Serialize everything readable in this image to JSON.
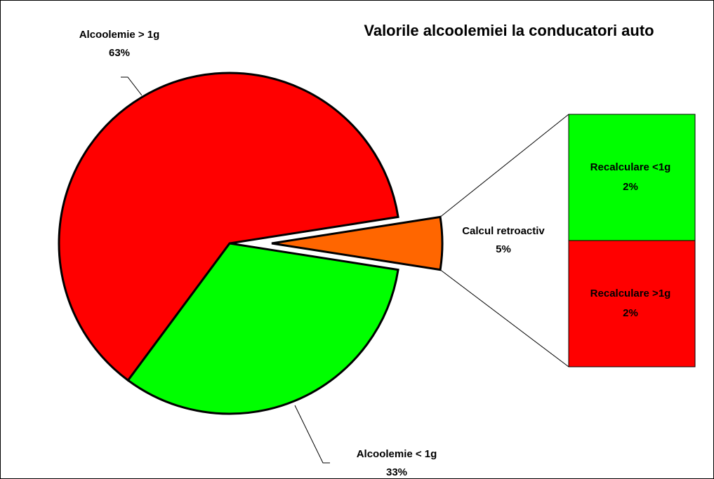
{
  "chart_data": {
    "type": "pie_of_bar",
    "title": "Valorile alcoolemiei la conducatori auto",
    "categories": [
      "Alcoolemie > 1g",
      "Alcoolemie < 1g",
      "Calcul retroactiv"
    ],
    "values": [
      63,
      33,
      5
    ],
    "value_labels": [
      "63%",
      "33%",
      "5%"
    ],
    "colors": [
      "#ff0000",
      "#00ff00",
      "#ff6600"
    ],
    "secondary": {
      "categories": [
        "Recalculare <1g",
        "Recalculare >1g"
      ],
      "values": [
        2,
        2
      ],
      "value_labels": [
        "2%",
        "2%"
      ],
      "colors": [
        "#00ff00",
        "#ff0000"
      ]
    }
  }
}
